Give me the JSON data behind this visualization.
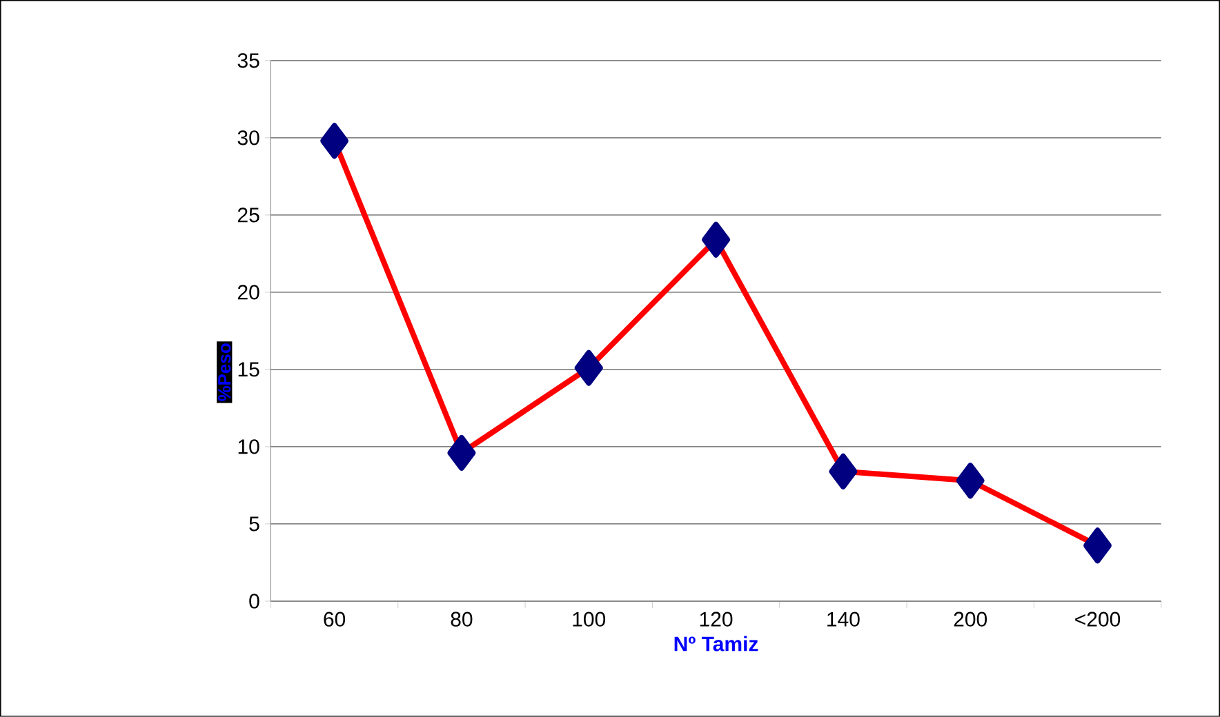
{
  "chart_data": {
    "type": "line",
    "xlabel": "Nº Tamiz",
    "ylabel": "%Peso",
    "categories": [
      "60",
      "80",
      "100",
      "120",
      "140",
      "200",
      "<200"
    ],
    "series": [
      {
        "color": "#ff0000",
        "values": [
          29.8,
          9.6,
          15.1,
          23.4,
          8.4,
          7.8,
          3.6
        ]
      }
    ],
    "ylim": [
      0,
      35
    ],
    "yticks": [
      0,
      5,
      10,
      15,
      20,
      25,
      30,
      35
    ],
    "grid": "y",
    "marker": "diamond",
    "line_style": "solid"
  }
}
